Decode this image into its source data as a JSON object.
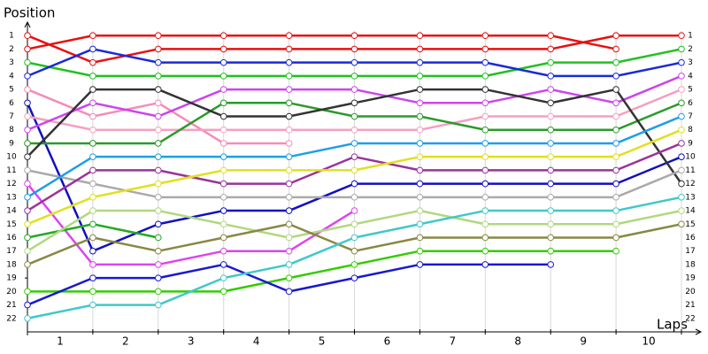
{
  "chart_data": {
    "type": "line",
    "y_title": "Position",
    "x_title": "Laps",
    "x": [
      0,
      1,
      2,
      3,
      4,
      5,
      6,
      7,
      8,
      9,
      10
    ],
    "xlim": [
      0,
      10.3
    ],
    "xticks": [
      {
        "value": 0.5,
        "label": "1"
      },
      {
        "value": 1.5,
        "label": "2"
      },
      {
        "value": 2.5,
        "label": "3"
      },
      {
        "value": 3.5,
        "label": "4"
      },
      {
        "value": 4.5,
        "label": "5"
      },
      {
        "value": 5.5,
        "label": "6"
      },
      {
        "value": 6.5,
        "label": "7"
      },
      {
        "value": 7.5,
        "label": "8"
      },
      {
        "value": 8.5,
        "label": "9"
      },
      {
        "value": 9.5,
        "label": "10"
      }
    ],
    "ylim": [
      23,
      0
    ],
    "yticks": [
      1,
      2,
      3,
      4,
      5,
      6,
      7,
      8,
      9,
      10,
      11,
      12,
      13,
      14,
      15,
      16,
      17,
      18,
      19,
      20,
      21,
      22
    ],
    "grid": true,
    "marker_fill": "#ffffff",
    "series": [
      {
        "color": "#e81010",
        "values": [
          1,
          3,
          2,
          2,
          2,
          2,
          2,
          2,
          2,
          1,
          1
        ]
      },
      {
        "color": "#e81010",
        "values": [
          2,
          1,
          1,
          1,
          1,
          1,
          1,
          1,
          1,
          2,
          null
        ]
      },
      {
        "color": "#22c022",
        "values": [
          3,
          4,
          4,
          4,
          4,
          4,
          4,
          4,
          3,
          3,
          2
        ]
      },
      {
        "color": "#1a2ad8",
        "values": [
          4,
          2,
          3,
          3,
          3,
          3,
          3,
          3,
          4,
          4,
          3
        ]
      },
      {
        "color": "#f48cb8",
        "values": [
          5,
          7,
          6,
          9,
          9,
          null,
          null,
          null,
          null,
          null,
          null
        ]
      },
      {
        "color": "#1010c0",
        "values": [
          6,
          17,
          15,
          14,
          14,
          12,
          12,
          12,
          12,
          12,
          10
        ]
      },
      {
        "color": "#f4a0c0",
        "values": [
          7,
          8,
          8,
          8,
          8,
          8,
          8,
          7,
          7,
          7,
          5
        ]
      },
      {
        "color": "#cc44ee",
        "values": [
          8,
          6,
          7,
          5,
          5,
          5,
          6,
          6,
          5,
          6,
          4
        ]
      },
      {
        "color": "#2a9a2a",
        "values": [
          9,
          9,
          9,
          6,
          6,
          7,
          7,
          8,
          8,
          8,
          6
        ]
      },
      {
        "color": "#333333",
        "values": [
          10,
          5,
          5,
          7,
          7,
          6,
          5,
          5,
          6,
          5,
          12
        ]
      },
      {
        "color": "#aaaaaa",
        "values": [
          11,
          12,
          13,
          13,
          13,
          13,
          13,
          13,
          13,
          13,
          11
        ]
      },
      {
        "color": "#dd44ee",
        "values": [
          12,
          18,
          18,
          17,
          17,
          14,
          null,
          null,
          null,
          null,
          null
        ]
      },
      {
        "color": "#1e9ee8",
        "values": [
          13,
          10,
          10,
          10,
          10,
          9,
          9,
          9,
          9,
          9,
          7
        ]
      },
      {
        "color": "#993399",
        "values": [
          14,
          11,
          11,
          12,
          12,
          10,
          11,
          11,
          11,
          11,
          9
        ]
      },
      {
        "color": "#e0e020",
        "values": [
          15,
          13,
          12,
          11,
          11,
          11,
          10,
          10,
          10,
          10,
          8
        ]
      },
      {
        "color": "#22aa22",
        "values": [
          16,
          15,
          16,
          null,
          null,
          null,
          null,
          null,
          null,
          null,
          null
        ]
      },
      {
        "color": "#b0d880",
        "values": [
          17,
          14,
          14,
          15,
          16,
          15,
          14,
          15,
          15,
          15,
          14
        ]
      },
      {
        "color": "#888844",
        "values": [
          18,
          16,
          17,
          16,
          15,
          17,
          16,
          16,
          16,
          16,
          15
        ]
      },
      {
        "color": "#33cc00",
        "values": [
          20,
          20,
          20,
          20,
          19,
          18,
          17,
          17,
          17,
          17,
          null
        ]
      },
      {
        "color": "#1818d0",
        "values": [
          21,
          19,
          19,
          18,
          20,
          19,
          18,
          18,
          18,
          null,
          null
        ]
      },
      {
        "color": "#40c8c8",
        "values": [
          22,
          21,
          21,
          19,
          18,
          16,
          15,
          14,
          14,
          14,
          13
        ]
      }
    ]
  }
}
